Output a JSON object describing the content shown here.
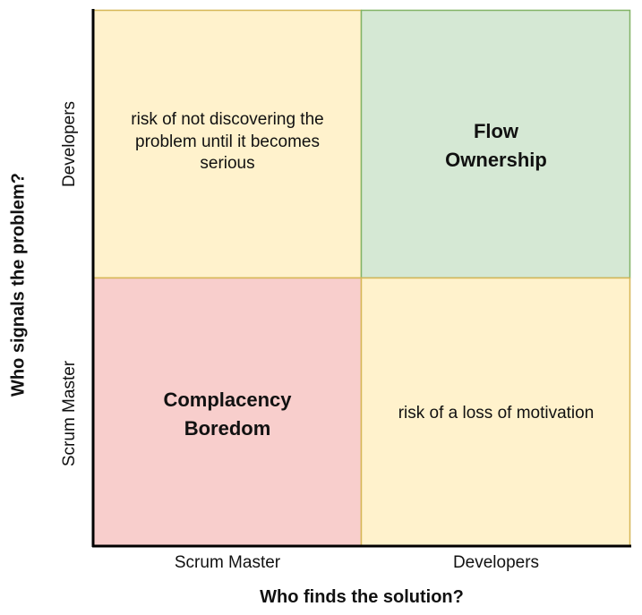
{
  "axes": {
    "x_label": "Who finds the solution?",
    "y_label": "Who signals the problem?",
    "x_ticks": [
      "Scrum Master",
      "Developers"
    ],
    "y_ticks": [
      "Developers",
      "Scrum Master"
    ]
  },
  "quadrants": {
    "top_left": "risk of not discovering the\nproblem until it becomes\nserious",
    "top_right": "Flow\nOwnership",
    "bottom_left": "Complacency\nBoredom",
    "bottom_right": "risk of a loss of motivation"
  },
  "colors": {
    "yellow_fill": "#fff2cc",
    "yellow_border": "#d6b656",
    "green_fill": "#d5e8d4",
    "green_border": "#82b366",
    "red_fill": "#f8cecc",
    "red_border": "#d6b656",
    "axis": "#000000"
  }
}
